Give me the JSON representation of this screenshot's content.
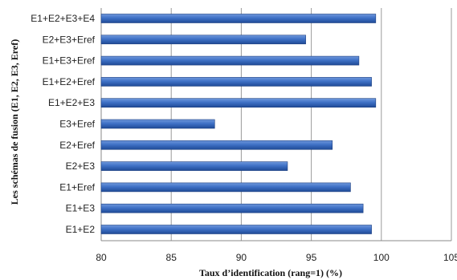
{
  "chart_data": {
    "type": "bar",
    "orientation": "horizontal",
    "xlabel": "Taux d’identification (rang=1) (%)",
    "ylabel": "Les schémas de fusion (E1, E2, E3, Eref)",
    "xlim": [
      80,
      105
    ],
    "xticks": [
      "80",
      "85",
      "90",
      "95",
      "100",
      "105"
    ],
    "xtick_values": [
      80,
      85,
      90,
      95,
      100,
      105
    ],
    "grid": "vertical",
    "categories": [
      "E1+E2+E3+E4",
      "E2+E3+Eref",
      "E1+E3+Eref",
      "E1+E2+Eref",
      "E1+E2+E3",
      "E3+Eref",
      "E2+Eref",
      "E2+E3",
      "E1+Eref",
      "E1+E3",
      "E1+E2"
    ],
    "values": [
      99.6,
      94.6,
      98.4,
      99.3,
      99.6,
      88.1,
      96.5,
      93.3,
      97.8,
      98.7,
      99.3
    ],
    "bar_color": "#3c6cc0"
  }
}
